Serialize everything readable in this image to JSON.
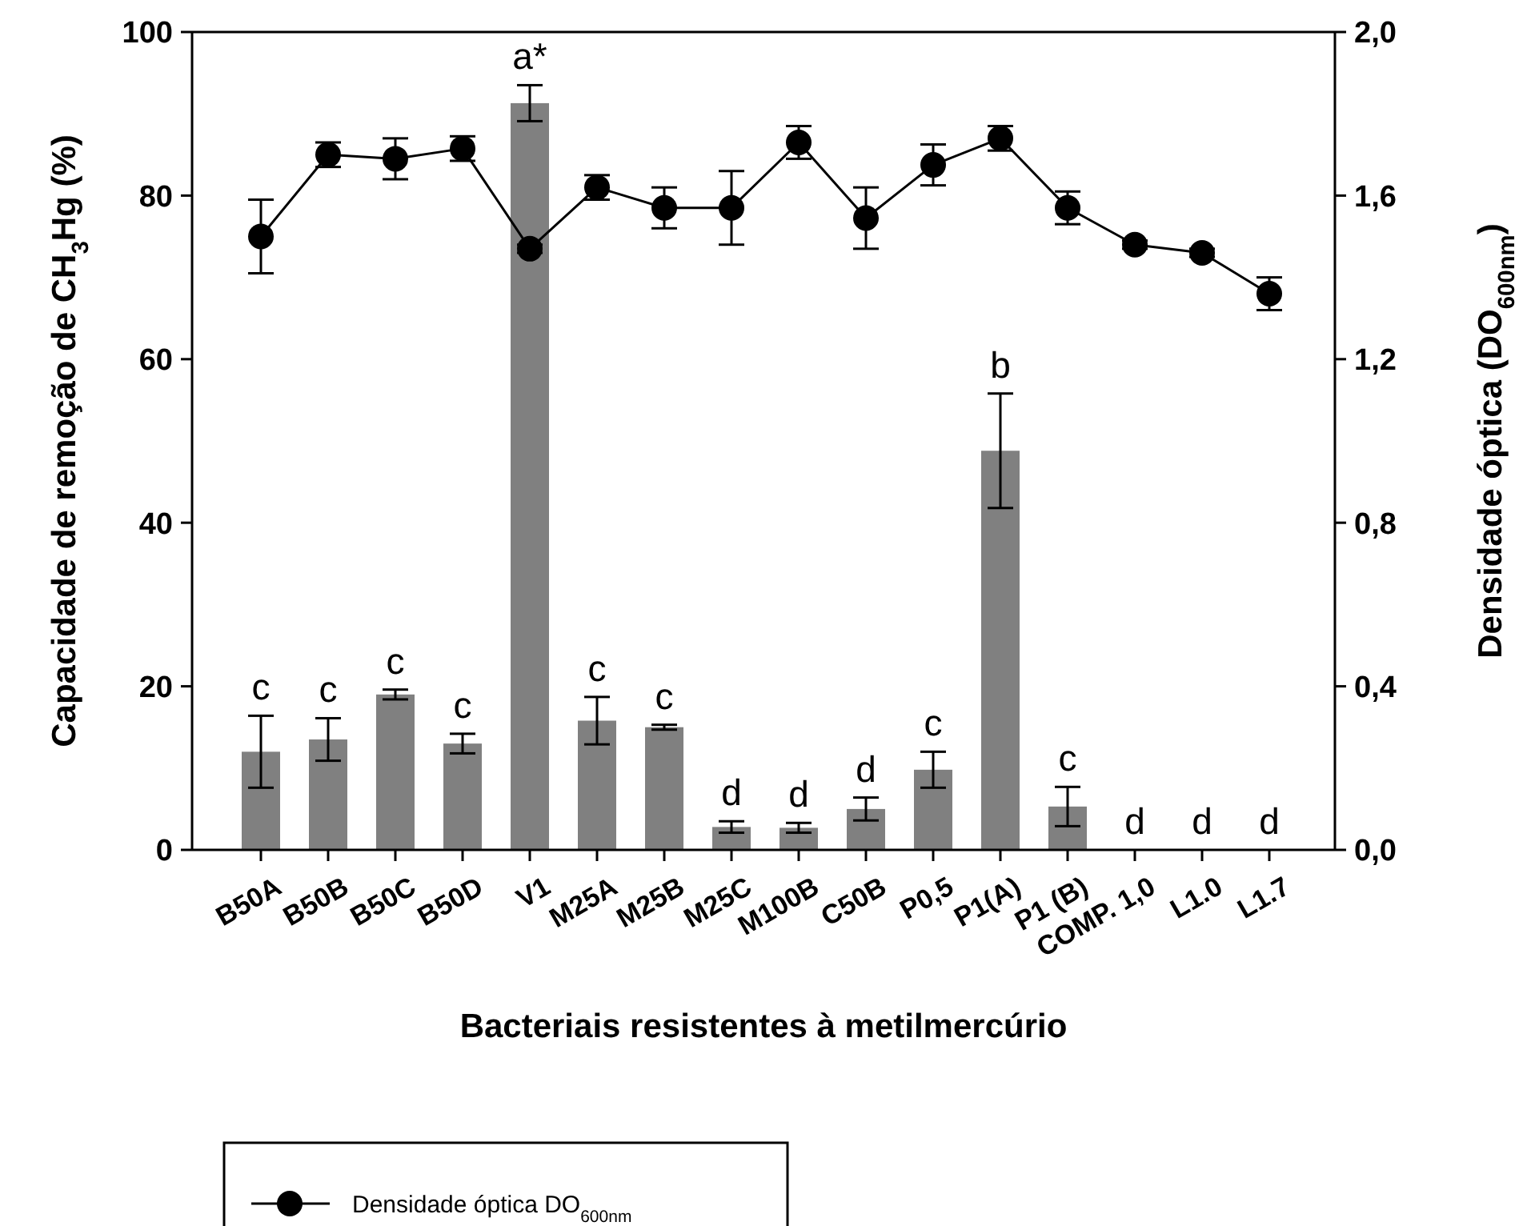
{
  "chart_data": {
    "type": "bar",
    "xlabel": "Bacteriais resistentes à metilmercúrio",
    "ylabel": "Capacidade de remoção de CH$_{3}$Hg (%)",
    "y2label": "Densidade óptica (DO$_{600nm}$)",
    "categories": [
      "B50A",
      "B50B",
      "B50C",
      "B50D",
      "V1",
      "M25A",
      "M25B",
      "M25C",
      "M100B",
      "C50B",
      "P0,5",
      "P1(A)",
      "P1 (B)",
      "COMP. 1,0",
      "L1.0",
      "L1.7"
    ],
    "series": [
      {
        "color": "#808080",
        "values": [
          12,
          13.5,
          19,
          13,
          91.3,
          15.8,
          15,
          2.8,
          2.7,
          5,
          9.8,
          48.8,
          5.3,
          0,
          0,
          0
        ],
        "errors": [
          4.4,
          2.6,
          0.6,
          1.2,
          2.2,
          2.9,
          0.3,
          0.7,
          0.6,
          1.4,
          2.2,
          7,
          2.4,
          null,
          null,
          null
        ],
        "value_labels": [
          "c",
          "c",
          "c",
          "c",
          "a*",
          "c",
          "c",
          "d",
          "d",
          "d",
          "c",
          "b",
          "c",
          "d",
          "d",
          "d"
        ]
      },
      {
        "type": "line",
        "name": "Densidade óptica DO$_{600nm}$",
        "color": "#000000",
        "axis": "y2",
        "marker": "circle",
        "line_style": "solid",
        "values": [
          1.5,
          1.7,
          1.69,
          1.715,
          1.47,
          1.62,
          1.57,
          1.57,
          1.73,
          1.545,
          1.675,
          1.74,
          1.57,
          1.48,
          1.46,
          1.36
        ],
        "errors": [
          0.09,
          0.03,
          0.05,
          0.03,
          0.01,
          0.03,
          0.05,
          0.09,
          0.04,
          0.075,
          0.05,
          0.03,
          0.04,
          0.01,
          0.01,
          0.04
        ]
      }
    ],
    "ylim": [
      0,
      100
    ],
    "yticks": [
      0,
      20,
      40,
      60,
      80,
      100
    ],
    "y2lim": [
      0,
      2
    ],
    "y2ticks": [
      {
        "value": 0,
        "label": "0,0"
      },
      {
        "value": 0.4,
        "label": "0,4"
      },
      {
        "value": 0.8,
        "label": "0,8"
      },
      {
        "value": 1.2,
        "label": "1,2"
      },
      {
        "value": 1.6,
        "label": "1,6"
      },
      {
        "value": 2,
        "label": "2,0"
      }
    ],
    "legend": "bottom left",
    "grid": false
  }
}
